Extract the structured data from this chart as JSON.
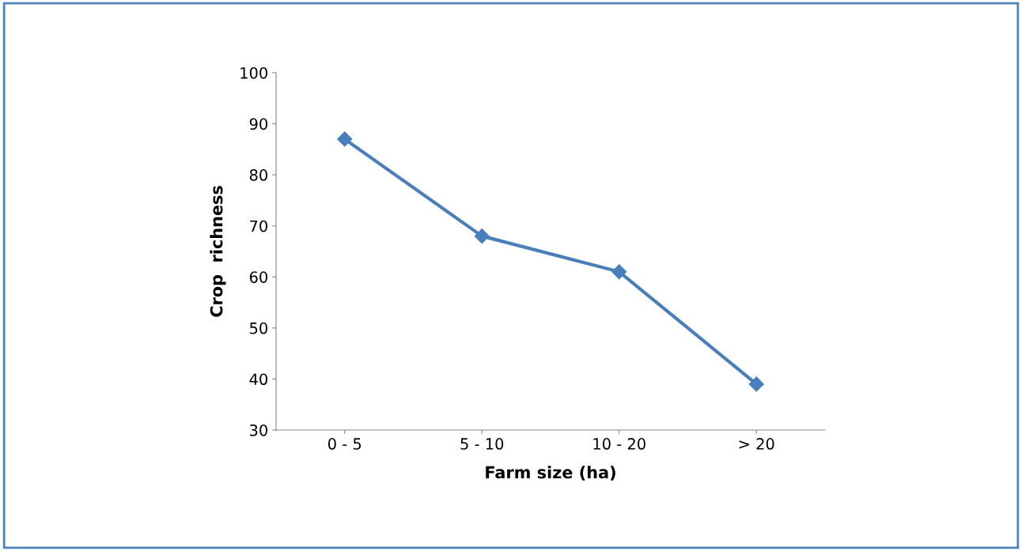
{
  "chart_data": {
    "type": "line",
    "xlabel": "Farm size (ha)",
    "ylabel": "Crop  richness",
    "categories": [
      "0 - 5",
      "5 - 10",
      "10 - 20",
      "> 20"
    ],
    "series": [
      {
        "color": "#4a7ebb",
        "values": [
          87,
          68,
          61,
          39
        ]
      }
    ],
    "ylim": [
      30,
      100
    ],
    "yticks": [
      30,
      40,
      50,
      60,
      70,
      80,
      90,
      100
    ],
    "grid": false,
    "legend": false,
    "marker": "diamond",
    "line_style": "solid"
  }
}
